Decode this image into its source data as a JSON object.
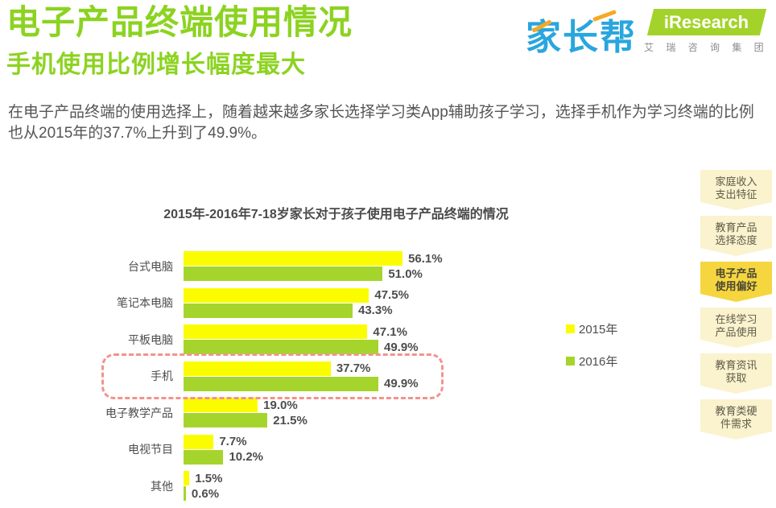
{
  "header": {
    "title": "电子产品终端使用情况",
    "subtitle": "手机使用比例增长幅度最大",
    "description": "在电子产品终端的使用选择上，随着越来越多家长选择学习类App辅助孩子学习，选择手机作为学习终端的比例也从2015年的37.7%上升到了49.9%。"
  },
  "branding": {
    "left_logo_text": "家长帮",
    "right_logo_text": "iResearch",
    "right_logo_subtext": "艾 瑞 咨 询 集 团"
  },
  "colors": {
    "title_green": "#8CD321",
    "bar_yellow": "#FCFC00",
    "bar_green": "#A5D52D",
    "highlight_pink": "#F2938E",
    "sidebar_inactive": "#FBF2CE",
    "sidebar_active": "#F6D63F",
    "text_dark": "#4D4D4D",
    "logo_blue": "#29A6DD",
    "logo_orange": "#F7A823",
    "logo_green": "#A3D32A"
  },
  "chart_data": {
    "type": "bar",
    "orientation": "horizontal",
    "title": "2015年-2016年7-18岁家长对于孩子使用电子产品终端的情况",
    "categories": [
      "台式电脑",
      "笔记本电脑",
      "平板电脑",
      "手机",
      "电子教学产品",
      "电视节目",
      "其他"
    ],
    "series": [
      {
        "name": "2015年",
        "color": "#FCFC00",
        "values": [
          56.1,
          47.5,
          47.1,
          37.7,
          19.0,
          7.7,
          1.5
        ]
      },
      {
        "name": "2016年",
        "color": "#A5D52D",
        "values": [
          51.0,
          43.3,
          49.9,
          49.9,
          21.5,
          10.2,
          0.6
        ]
      }
    ],
    "value_suffix": "%",
    "xlim": [
      0,
      60
    ],
    "grid": false,
    "legend_position": "right-middle",
    "highlighted_category": "手机"
  },
  "sidebar": {
    "items": [
      {
        "lines": [
          "家庭收入",
          "支出特征"
        ],
        "active": false
      },
      {
        "lines": [
          "教育产品",
          "选择态度"
        ],
        "active": false
      },
      {
        "lines": [
          "电子产品",
          "使用偏好"
        ],
        "active": true
      },
      {
        "lines": [
          "在线学习",
          "产品使用"
        ],
        "active": false
      },
      {
        "lines": [
          "教育资讯",
          "获取"
        ],
        "active": false
      },
      {
        "lines": [
          "教育类硬",
          "件需求"
        ],
        "active": false
      }
    ]
  }
}
